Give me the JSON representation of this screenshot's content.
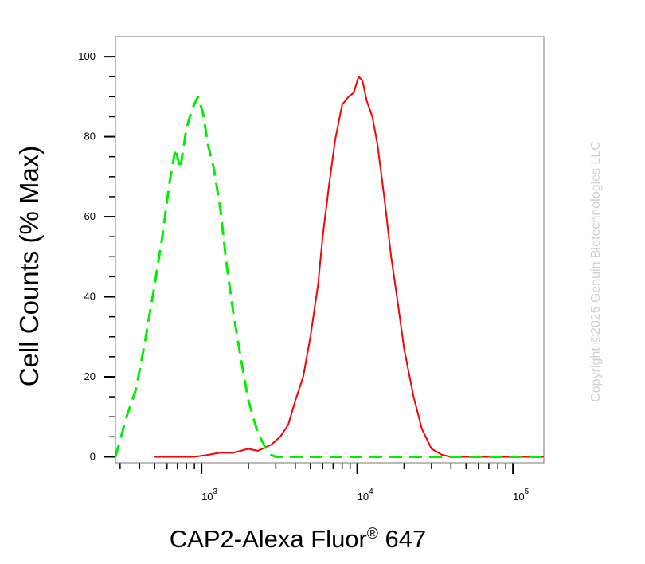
{
  "chart_data": {
    "type": "line",
    "x_scale": "log",
    "xlim": [
      280,
      158000
    ],
    "ylim": [
      -1.5,
      105
    ],
    "grid": false,
    "legend": "none",
    "ylabel": "Cell Counts (% Max)",
    "xlabel": "CAP2-Alexa Fluor",
    "xlabel_sup": "®",
    "xlabel_suffix": " 647",
    "y_ticks": [
      0,
      20,
      40,
      60,
      80,
      100
    ],
    "y_tick_labels": [
      "0",
      "20",
      "40",
      "60",
      "80",
      "100"
    ],
    "x_ticks": [
      {
        "value": 1000,
        "base": "10",
        "exp": "3"
      },
      {
        "value": 10000,
        "base": "10",
        "exp": "4"
      },
      {
        "value": 100000,
        "base": "10",
        "exp": "5"
      }
    ],
    "watermark": "Copyright ©2025 Genuin Biotechnologies LLC",
    "series": [
      {
        "color": "#ff0000",
        "style": "solid",
        "x": [
          500,
          700,
          900,
          1100,
          1300,
          1600,
          2000,
          2300,
          2800,
          3200,
          3600,
          4000,
          4500,
          5000,
          5600,
          6000,
          6600,
          7200,
          8000,
          8800,
          9500,
          10200,
          10800,
          11500,
          12500,
          13500,
          15000,
          16500,
          18000,
          20000,
          23000,
          26000,
          30000,
          35000,
          40000,
          50000,
          80000,
          158000
        ],
        "y": [
          0,
          0,
          0,
          0.5,
          1,
          1,
          2,
          1.5,
          3,
          5,
          8,
          14,
          20,
          30,
          43,
          55,
          68,
          79,
          88,
          90,
          91,
          95,
          94,
          89,
          85,
          78,
          64,
          50,
          40,
          27,
          15,
          7,
          2,
          0.5,
          0,
          0,
          0,
          0
        ]
      },
      {
        "color": "#00ee00",
        "style": "dashed",
        "x": [
          280,
          330,
          380,
          430,
          500,
          560,
          620,
          680,
          730,
          800,
          870,
          950,
          1020,
          1100,
          1200,
          1320,
          1450,
          1600,
          1800,
          2000,
          2300,
          2600,
          2800,
          3000,
          5000,
          158000
        ],
        "y": [
          0,
          10,
          17,
          28,
          43,
          55,
          68,
          77,
          72,
          82,
          87,
          90,
          86,
          78,
          72,
          62,
          48,
          36,
          24,
          14,
          6,
          2,
          0.5,
          0,
          0,
          0
        ]
      }
    ]
  }
}
